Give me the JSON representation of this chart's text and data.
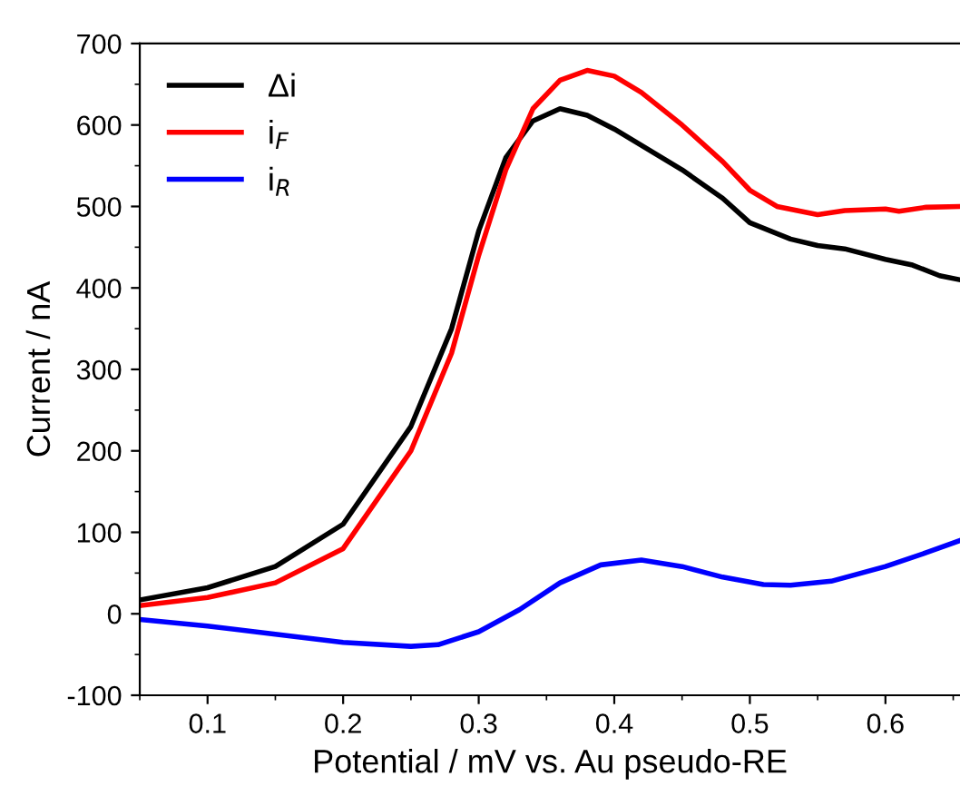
{
  "chart_data": {
    "type": "line",
    "xlabel": "Potential / mV vs. Au pseudo-RE",
    "ylabel": "Current / nA",
    "xlim": [
      0.05,
      0.655
    ],
    "ylim": [
      -100,
      700
    ],
    "xticks": [
      0.1,
      0.2,
      0.3,
      0.4,
      0.5,
      0.6
    ],
    "yticks": [
      -100,
      0,
      100,
      200,
      300,
      400,
      500,
      600,
      700
    ],
    "grid": false,
    "legend": "top left",
    "marker": "none",
    "line_style": "solid",
    "series": [
      {
        "name": "Δi",
        "color": "#000000",
        "x": [
          0.05,
          0.1,
          0.15,
          0.2,
          0.25,
          0.28,
          0.3,
          0.32,
          0.34,
          0.36,
          0.38,
          0.4,
          0.43,
          0.45,
          0.48,
          0.5,
          0.53,
          0.55,
          0.57,
          0.6,
          0.62,
          0.64,
          0.655
        ],
        "values": [
          17,
          32,
          58,
          110,
          230,
          350,
          470,
          560,
          605,
          620,
          612,
          595,
          565,
          545,
          510,
          480,
          460,
          452,
          448,
          435,
          428,
          415,
          410
        ]
      },
      {
        "name": "i$_{F}$",
        "color": "#ff0000",
        "x": [
          0.05,
          0.1,
          0.15,
          0.2,
          0.25,
          0.28,
          0.3,
          0.32,
          0.34,
          0.36,
          0.38,
          0.4,
          0.42,
          0.45,
          0.48,
          0.5,
          0.52,
          0.55,
          0.57,
          0.6,
          0.61,
          0.63,
          0.655
        ],
        "values": [
          10,
          20,
          38,
          80,
          200,
          320,
          440,
          545,
          620,
          655,
          667,
          660,
          640,
          600,
          555,
          520,
          500,
          490,
          495,
          497,
          494,
          499,
          500
        ]
      },
      {
        "name": "i$_{R}$",
        "color": "#0000ff",
        "x": [
          0.05,
          0.1,
          0.15,
          0.2,
          0.25,
          0.27,
          0.3,
          0.33,
          0.36,
          0.39,
          0.42,
          0.45,
          0.48,
          0.51,
          0.53,
          0.56,
          0.6,
          0.63,
          0.655
        ],
        "values": [
          -7,
          -15,
          -25,
          -35,
          -40,
          -38,
          -22,
          5,
          38,
          60,
          66,
          58,
          45,
          36,
          35,
          40,
          58,
          75,
          90
        ]
      }
    ]
  }
}
